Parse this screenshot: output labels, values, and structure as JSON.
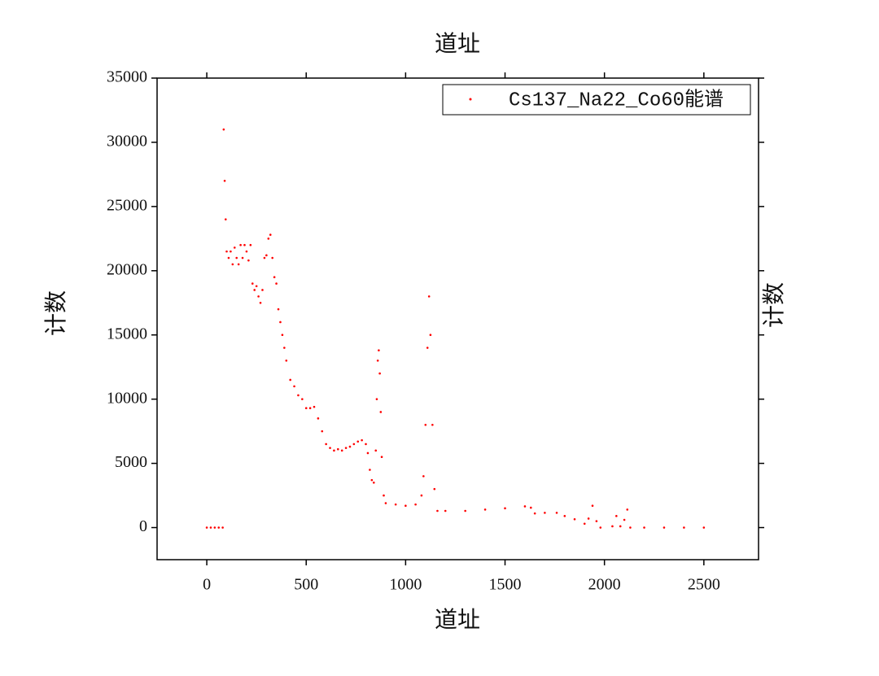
{
  "chart_data": {
    "type": "scatter",
    "x_label_top": "道址",
    "x_label": "道址",
    "y_label": "计数",
    "y2_label": "计数",
    "xlim": [
      -250,
      2775
    ],
    "ylim": [
      -2500,
      35000
    ],
    "xticks": [
      0,
      500,
      1000,
      1500,
      2000,
      2500
    ],
    "yticks": [
      0,
      5000,
      10000,
      15000,
      20000,
      25000,
      30000,
      35000
    ],
    "legend": "upper right",
    "series": [
      {
        "name": "Cs137_Na22_Co60能谱",
        "color": "#ff0000",
        "x": [
          0,
          20,
          40,
          60,
          80,
          85,
          90,
          95,
          100,
          110,
          120,
          130,
          140,
          150,
          160,
          170,
          180,
          190,
          200,
          210,
          220,
          230,
          240,
          250,
          260,
          270,
          280,
          290,
          300,
          310,
          320,
          330,
          340,
          350,
          360,
          370,
          380,
          390,
          400,
          420,
          440,
          460,
          480,
          500,
          520,
          540,
          560,
          580,
          600,
          620,
          640,
          660,
          680,
          700,
          720,
          740,
          760,
          780,
          800,
          810,
          820,
          830,
          840,
          850,
          855,
          860,
          865,
          870,
          875,
          880,
          890,
          900,
          950,
          1000,
          1050,
          1080,
          1090,
          1100,
          1110,
          1118,
          1125,
          1135,
          1145,
          1160,
          1200,
          1300,
          1400,
          1500,
          1600,
          1630,
          1650,
          1700,
          1760,
          1800,
          1850,
          1900,
          1920,
          1940,
          1960,
          1980,
          2040,
          2060,
          2080,
          2100,
          2115,
          2130,
          2200,
          2300,
          2400,
          2500
        ],
        "values": [
          0,
          0,
          0,
          0,
          0,
          31000,
          27000,
          24000,
          21500,
          21000,
          21500,
          20500,
          21800,
          21000,
          20500,
          22000,
          21000,
          22000,
          21500,
          20800,
          22000,
          19000,
          18500,
          18800,
          18000,
          17500,
          18500,
          21000,
          21200,
          22500,
          22800,
          21000,
          19500,
          19000,
          17000,
          16000,
          15000,
          14000,
          13000,
          11500,
          11000,
          10300,
          10000,
          9300,
          9300,
          9400,
          8500,
          7500,
          6500,
          6200,
          6000,
          6100,
          6000,
          6200,
          6300,
          6500,
          6700,
          6800,
          6500,
          5800,
          4500,
          3700,
          3500,
          6000,
          10000,
          13000,
          13800,
          12000,
          9000,
          5500,
          2500,
          1900,
          1800,
          1700,
          1800,
          2500,
          4000,
          8000,
          14000,
          18000,
          15000,
          8000,
          3000,
          1300,
          1300,
          1300,
          1400,
          1500,
          1650,
          1550,
          1100,
          1150,
          1150,
          900,
          650,
          300,
          700,
          1700,
          500,
          0,
          100,
          900,
          100,
          600,
          1400,
          0,
          0,
          0,
          0,
          0
        ]
      }
    ]
  }
}
